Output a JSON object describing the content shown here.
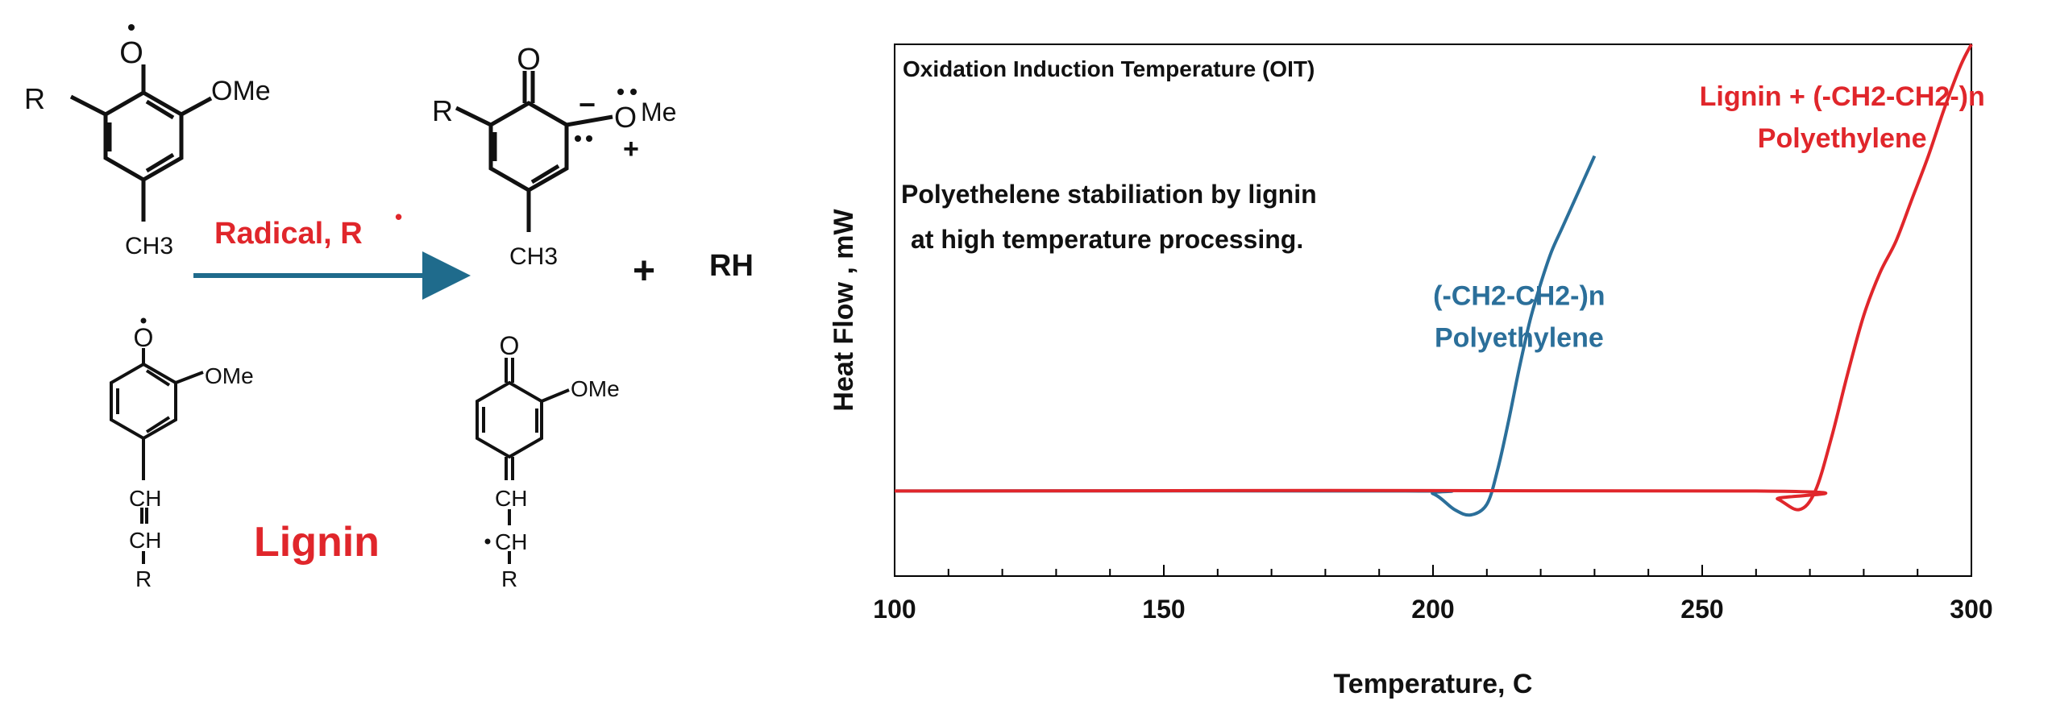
{
  "scheme": {
    "substituent_r": "R",
    "methoxy": "OMe",
    "methyl": "CH3",
    "ch": "CH",
    "radical_label": "Radical, R",
    "radical_dot": "•",
    "plus": "+",
    "product": "RH",
    "lignin_label": "Lignin",
    "colors": {
      "arrow": "#1f6b8c",
      "red": "#e0262b"
    }
  },
  "chart_data": {
    "type": "line",
    "title": "Oxidation Induction Temperature (OIT)",
    "xlabel": "Temperature, C",
    "ylabel": "Heat Flow , mW",
    "xlim": [
      100,
      300
    ],
    "ylim": [
      0,
      10
    ],
    "xticks": [
      100,
      150,
      200,
      250,
      300
    ],
    "annotation": [
      "Polyethelene stabiliation by lignin",
      "at high temperature processing."
    ],
    "series": [
      {
        "name": [
          "(-CH2-CH2-)n",
          "Polyethylene"
        ],
        "color": "#2b6f9a",
        "x": [
          100,
          195,
          200,
          204,
          207,
          210,
          212,
          214,
          216,
          218,
          220,
          222,
          224,
          226,
          228,
          230
        ],
        "y": [
          1.6,
          1.6,
          1.55,
          1.25,
          1.15,
          1.35,
          2.0,
          2.9,
          3.9,
          4.8,
          5.5,
          6.1,
          6.55,
          7.0,
          7.45,
          7.9
        ]
      },
      {
        "name": [
          "Lignin +  (-CH2-CH2-)n",
          "Polyethylene"
        ],
        "color": "#e0262b",
        "x": [
          100,
          260,
          264,
          268,
          271,
          274,
          277,
          280,
          283,
          286,
          289,
          292,
          295,
          298,
          300
        ],
        "y": [
          1.6,
          1.6,
          1.45,
          1.25,
          1.6,
          2.6,
          3.8,
          4.9,
          5.7,
          6.3,
          7.1,
          7.9,
          8.8,
          9.6,
          10.0
        ]
      }
    ]
  }
}
